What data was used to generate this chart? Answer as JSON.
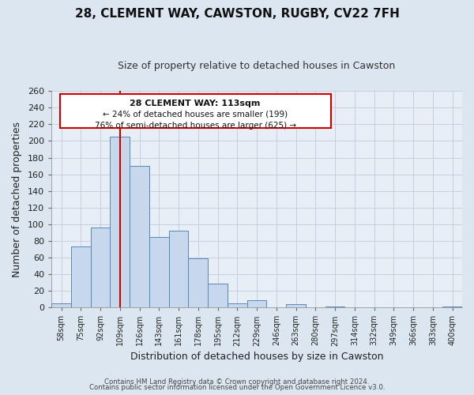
{
  "title": "28, CLEMENT WAY, CAWSTON, RUGBY, CV22 7FH",
  "subtitle": "Size of property relative to detached houses in Cawston",
  "xlabel": "Distribution of detached houses by size in Cawston",
  "ylabel": "Number of detached properties",
  "bar_labels": [
    "58sqm",
    "75sqm",
    "92sqm",
    "109sqm",
    "126sqm",
    "143sqm",
    "161sqm",
    "178sqm",
    "195sqm",
    "212sqm",
    "229sqm",
    "246sqm",
    "263sqm",
    "280sqm",
    "297sqm",
    "314sqm",
    "332sqm",
    "349sqm",
    "366sqm",
    "383sqm",
    "400sqm"
  ],
  "bar_values": [
    5,
    73,
    96,
    205,
    170,
    85,
    92,
    59,
    29,
    5,
    9,
    0,
    4,
    0,
    1,
    0,
    0,
    0,
    0,
    0,
    1
  ],
  "bar_color": "#c8d8ec",
  "bar_edge_color": "#5588bb",
  "vline_color": "#cc0000",
  "annotation_title": "28 CLEMENT WAY: 113sqm",
  "annotation_line1": "← 24% of detached houses are smaller (199)",
  "annotation_line2": "76% of semi-detached houses are larger (625) →",
  "annotation_box_color": "#ffffff",
  "annotation_box_edge": "#cc0000",
  "ylim": [
    0,
    260
  ],
  "yticks": [
    0,
    20,
    40,
    60,
    80,
    100,
    120,
    140,
    160,
    180,
    200,
    220,
    240,
    260
  ],
  "bg_color": "#dce6f0",
  "plot_bg_color": "#e8eef6",
  "footer_line1": "Contains HM Land Registry data © Crown copyright and database right 2024.",
  "footer_line2": "Contains public sector information licensed under the Open Government Licence v3.0."
}
